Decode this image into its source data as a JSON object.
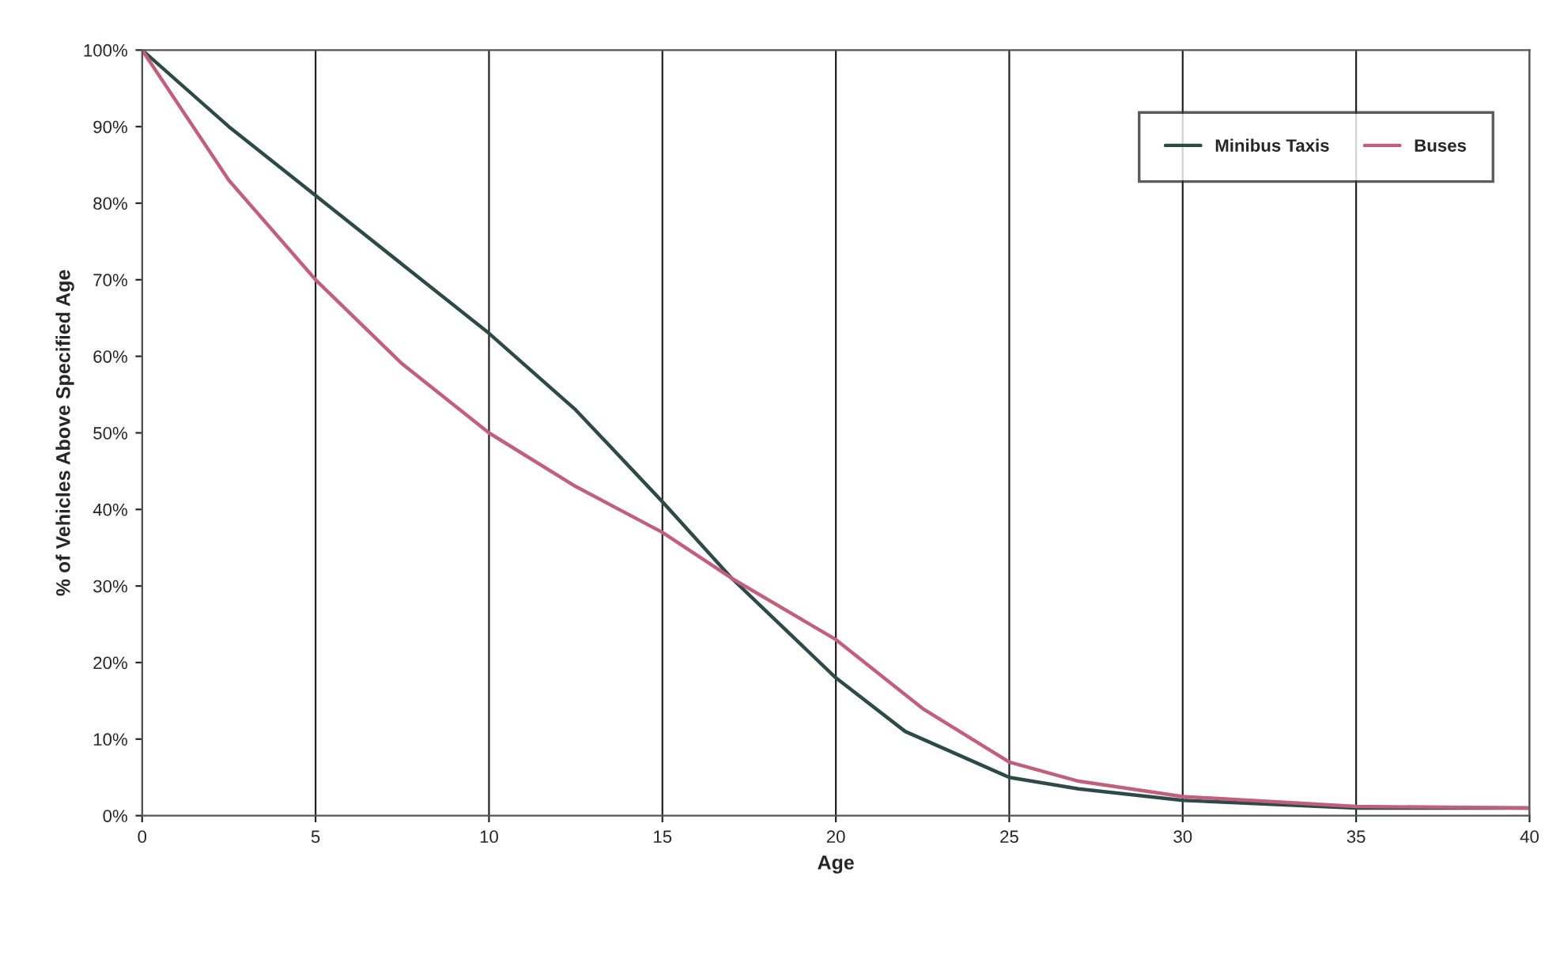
{
  "chart_data": {
    "type": "line",
    "xlabel": "Age",
    "ylabel": "% of Vehicles Above Specified Age",
    "series": [
      {
        "name": "Minibus Taxis",
        "color": "#2e4a48",
        "x": [
          0,
          2.5,
          5,
          7.5,
          10,
          12.5,
          15,
          17,
          20,
          22,
          25,
          27,
          30,
          35,
          40
        ],
        "values": [
          100,
          90,
          81,
          72,
          63,
          53,
          41,
          31,
          18,
          11,
          5,
          3.5,
          2,
          1,
          1
        ]
      },
      {
        "name": "Buses",
        "color": "#c0607a",
        "x": [
          0,
          2.5,
          5,
          7.5,
          10,
          12.5,
          15,
          17,
          20,
          22.5,
          25,
          27,
          30,
          35,
          40
        ],
        "values": [
          100,
          83,
          70,
          59,
          50,
          43,
          37,
          31,
          23,
          14,
          7,
          4.5,
          2.5,
          1.2,
          1
        ]
      }
    ],
    "xlim": [
      0,
      40
    ],
    "xticks": [
      0,
      5,
      10,
      15,
      20,
      25,
      30,
      35,
      40
    ],
    "ylim": [
      0,
      100
    ],
    "yticks": [
      {
        "value": 0,
        "label": "0%"
      },
      {
        "value": 10,
        "label": "10%"
      },
      {
        "value": 20,
        "label": "20%"
      },
      {
        "value": 30,
        "label": "30%"
      },
      {
        "value": 40,
        "label": "40%"
      },
      {
        "value": 50,
        "label": "50%"
      },
      {
        "value": 60,
        "label": "60%"
      },
      {
        "value": 70,
        "label": "70%"
      },
      {
        "value": 80,
        "label": "80%"
      },
      {
        "value": 90,
        "label": "90%"
      },
      {
        "value": 100,
        "label": "100%"
      }
    ],
    "grid": "x",
    "legend": "top right",
    "marker": "none",
    "line_style": "solid"
  }
}
